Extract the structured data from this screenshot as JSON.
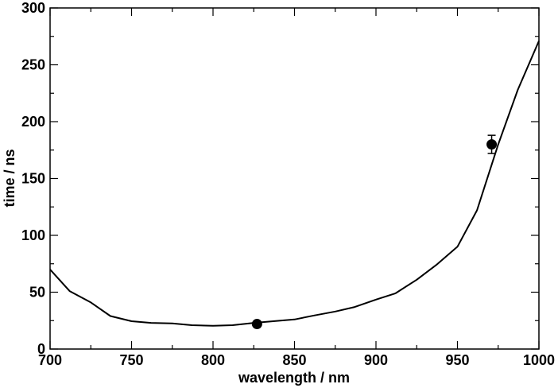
{
  "chart_data": {
    "type": "line",
    "xlabel": "wavelength / nm",
    "ylabel": "time / ns",
    "xlim": [
      700,
      1000
    ],
    "ylim": [
      0,
      300
    ],
    "x_ticks": [
      700,
      750,
      800,
      850,
      900,
      950,
      1000
    ],
    "y_ticks": [
      0,
      50,
      100,
      150,
      200,
      250,
      300
    ],
    "x_minor_step": 25,
    "y_minor_step": 25,
    "grid": false,
    "series": [
      {
        "type": "line",
        "x": [
          700,
          712,
          725,
          737,
          750,
          762,
          775,
          787,
          800,
          812,
          825,
          837,
          850,
          862,
          875,
          887,
          900,
          912,
          925,
          937,
          950,
          962,
          975,
          987,
          1000
        ],
        "y": [
          70,
          51,
          41,
          29,
          24.5,
          23,
          22.5,
          21,
          20.5,
          21,
          23,
          24.5,
          26,
          29.5,
          33,
          37,
          43.5,
          49,
          61,
          74,
          90,
          122,
          180,
          228,
          271
        ]
      },
      {
        "type": "scatter",
        "x": [
          827,
          971
        ],
        "y": [
          22,
          180
        ],
        "y_error": [
          null,
          8
        ]
      }
    ]
  }
}
